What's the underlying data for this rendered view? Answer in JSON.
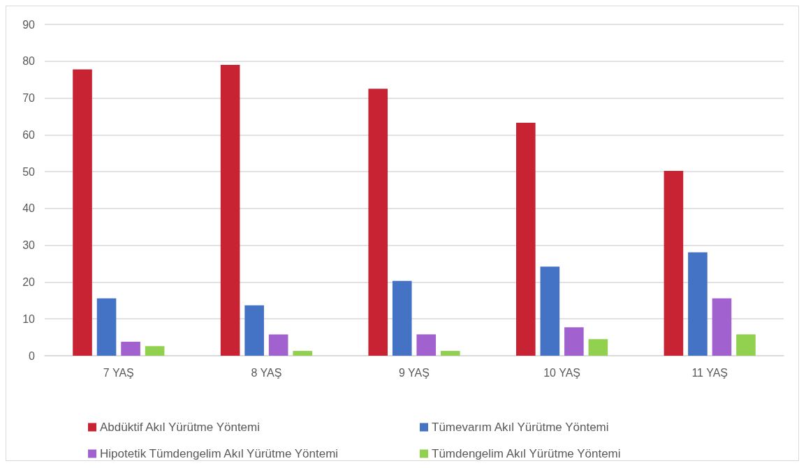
{
  "chart_data": {
    "type": "bar",
    "categories": [
      "7 YAŞ",
      "8 YAŞ",
      "9 YAŞ",
      "10 YAŞ",
      "11 YAŞ"
    ],
    "series": [
      {
        "name": "Abdüktif Akıl Yürütme Yöntemi",
        "color": "#c82333",
        "values": [
          77.8,
          79,
          72.5,
          63.3,
          50.2
        ]
      },
      {
        "name": "Tümevarım Akıl Yürütme Yöntemi",
        "color": "#4472c4",
        "values": [
          15.6,
          13.7,
          20.3,
          24.2,
          28.1
        ]
      },
      {
        "name": "Hipotetik Tümdengelim Akıl Yürütme Yöntemi",
        "color": "#a162cf",
        "values": [
          3.8,
          5.8,
          5.8,
          7.7,
          15.6
        ]
      },
      {
        "name": "Tümdengelim Akıl Yürütme Yöntemi",
        "color": "#92d050",
        "values": [
          2.6,
          1.3,
          1.3,
          4.5,
          5.8
        ]
      }
    ],
    "ylim": [
      0,
      90
    ],
    "yticks": [
      0,
      10,
      20,
      30,
      40,
      50,
      60,
      70,
      80,
      90
    ],
    "grid": "y",
    "legend": "bottom"
  }
}
